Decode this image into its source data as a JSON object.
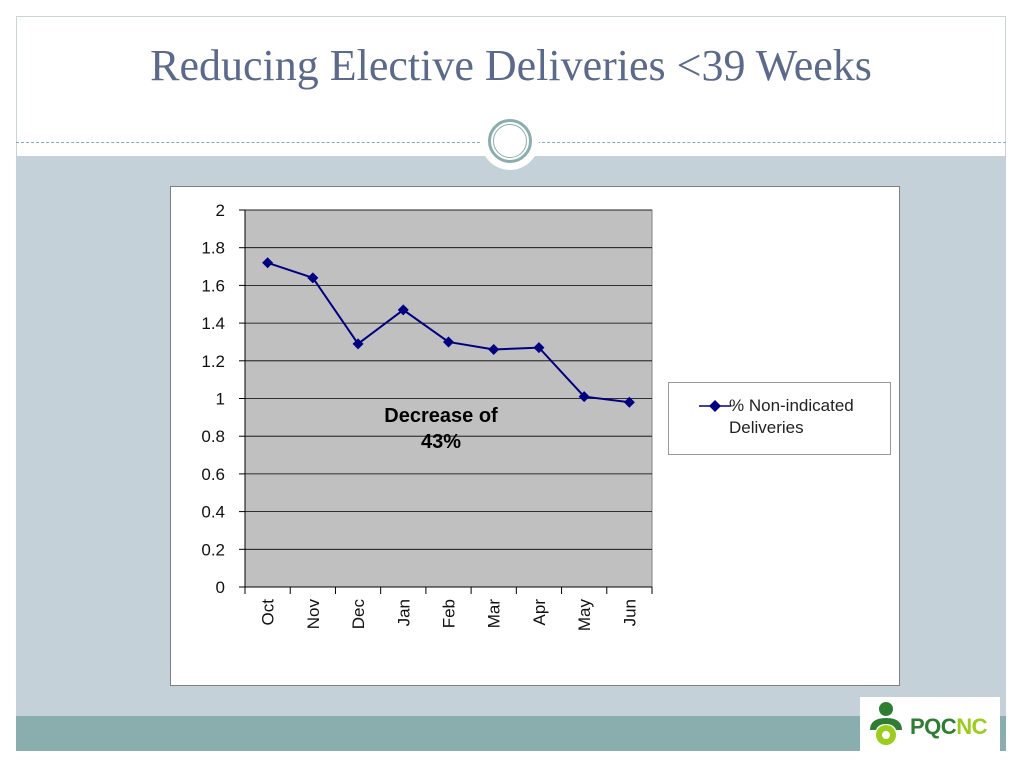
{
  "slide": {
    "title": "Reducing Elective Deliveries <39 Weeks"
  },
  "chart_data": {
    "type": "line",
    "categories": [
      "Oct",
      "Nov",
      "Dec",
      "Jan",
      "Feb",
      "Mar",
      "Apr",
      "May",
      "Jun"
    ],
    "series": [
      {
        "name": "% Non-indicated Deliveries",
        "values": [
          1.72,
          1.64,
          1.29,
          1.47,
          1.3,
          1.26,
          1.27,
          1.01,
          0.98
        ],
        "color": "#000080",
        "marker": "diamond"
      }
    ],
    "ylim": [
      0,
      2
    ],
    "yticks": [
      0,
      0.2,
      0.4,
      0.6,
      0.8,
      1,
      1.2,
      1.4,
      1.6,
      1.8,
      2
    ],
    "ytick_labels": [
      "0",
      "0.2",
      "0.4",
      "0.6",
      "0.8",
      "1",
      "1.2",
      "1.4",
      "1.6",
      "1.8",
      "2"
    ],
    "grid": "horizontal",
    "plot_background": "#c0c0c0",
    "legend_placement": "right",
    "annotation": {
      "line1": "Decrease of",
      "line2": "43%"
    }
  },
  "logo": {
    "part1": "PQC",
    "part2": "NC",
    "colors": {
      "green": "#2e7d32",
      "lime": "#9ccc1e"
    }
  },
  "colors": {
    "title": "#5b6a8a",
    "panel": "#c5d1d8",
    "band": "#8aaeae"
  }
}
